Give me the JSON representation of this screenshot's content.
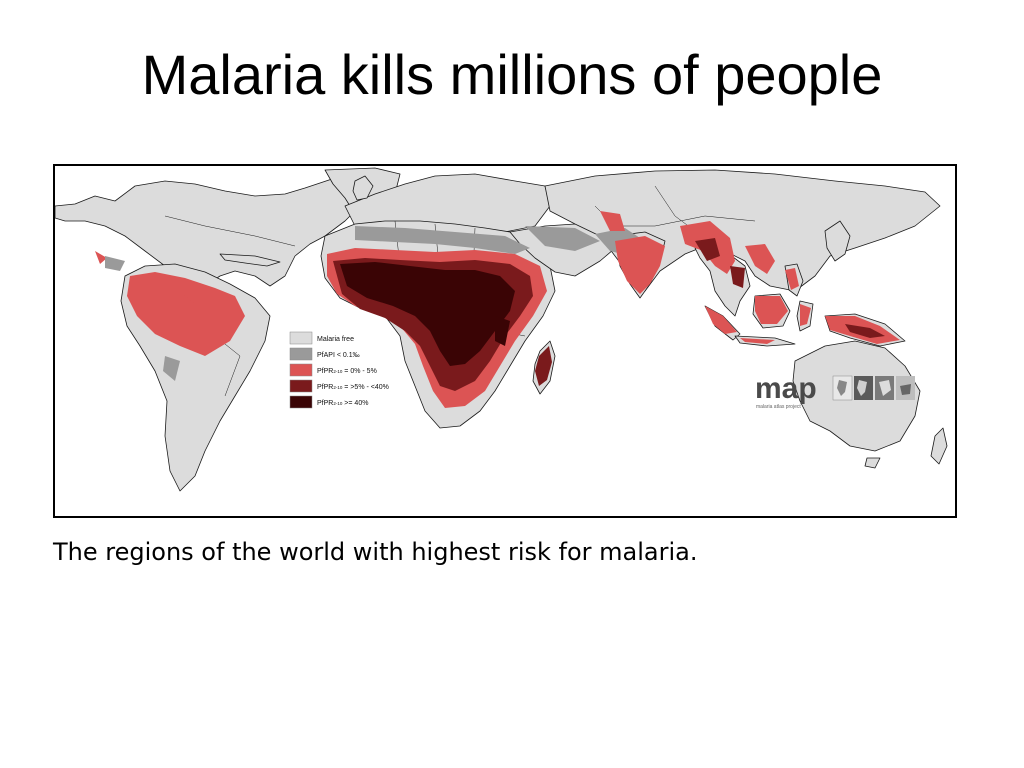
{
  "slide": {
    "title": "Malaria kills millions of people",
    "caption": "The regions of the world with highest risk for malaria."
  },
  "map": {
    "legend": [
      {
        "pre": "Malaria free",
        "sub": "",
        "post": "",
        "color": "#dcdcdc"
      },
      {
        "pre": "PfAPI < 0.1‰",
        "sub": "",
        "post": "",
        "color": "#9a9a9a"
      },
      {
        "pre": "PfPR",
        "sub": "2-10",
        "post": " = 0% - 5%",
        "color": "#dc5454"
      },
      {
        "pre": "PfPR",
        "sub": "2-10",
        "post": " = >5% - <40%",
        "color": "#7a1a1c"
      },
      {
        "pre": "PfPR",
        "sub": "2-10",
        "post": " >= 40%",
        "color": "#3a0405"
      }
    ],
    "logo": {
      "text": "map",
      "subtitle": "malaria atlas project"
    },
    "colors": {
      "land": "#dcdcdc",
      "border": "#1a1a1a",
      "unstable": "#9a9a9a",
      "low": "#dc5454",
      "mid": "#7a1a1c",
      "high": "#3a0405"
    }
  }
}
